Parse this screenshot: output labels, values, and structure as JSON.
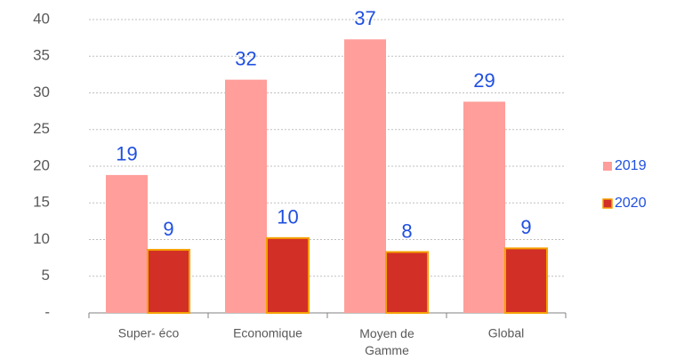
{
  "chart_data": {
    "type": "bar",
    "categories": [
      "Super- éco",
      "Economique",
      "Moyen de Gamme",
      "Global"
    ],
    "series": [
      {
        "name": "2019",
        "color": "#ff9e9a",
        "values": [
          18.8,
          31.8,
          37.3,
          28.8
        ],
        "value_labels": [
          "19",
          "32",
          "37",
          "29"
        ]
      },
      {
        "name": "2020",
        "color": "#d22f27",
        "edge_color": "#f5a000",
        "values": [
          8.6,
          10.2,
          8.3,
          8.8
        ],
        "value_labels": [
          "9",
          "10",
          "8",
          "9"
        ]
      }
    ],
    "ylim": [
      0,
      40
    ],
    "yticks": [
      {
        "value": 0,
        "label": "-"
      },
      5,
      10,
      15,
      20,
      25,
      30,
      35,
      40
    ],
    "grid": true,
    "legend": "right"
  }
}
